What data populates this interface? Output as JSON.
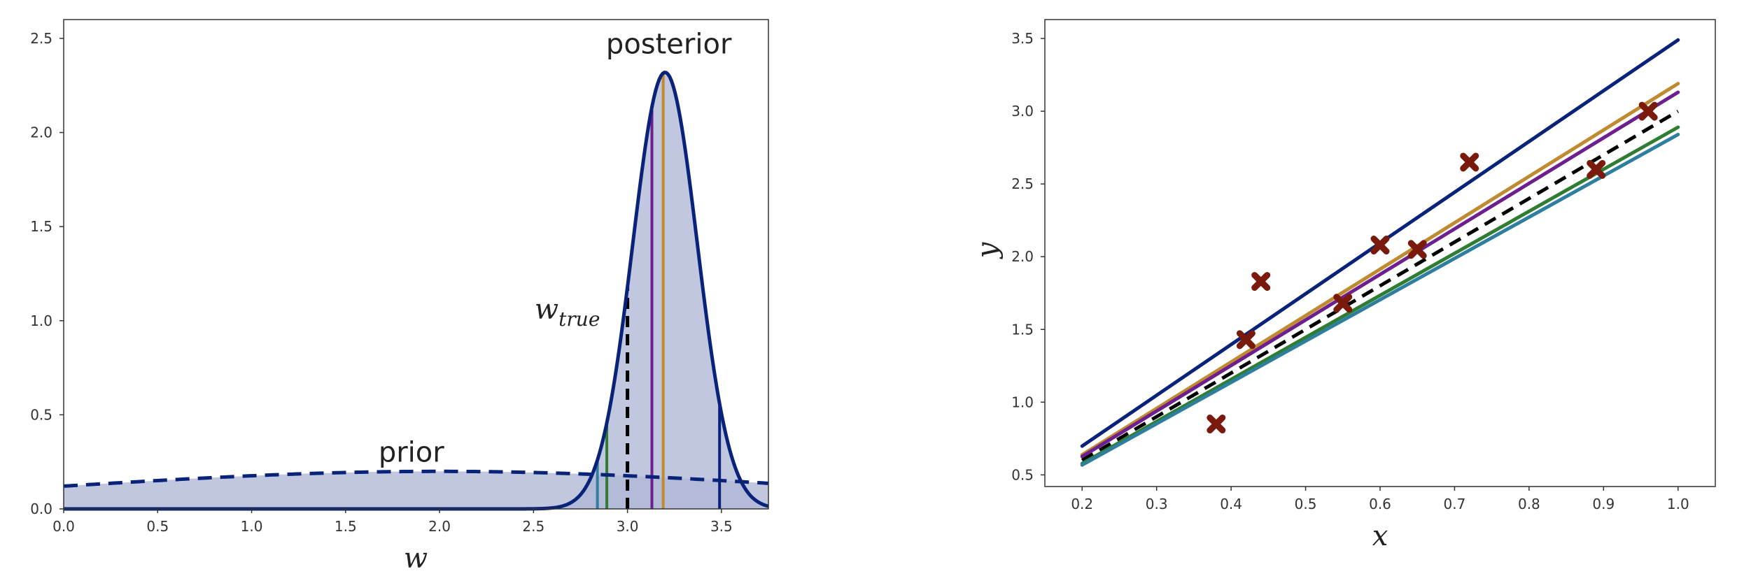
{
  "chart_data": [
    {
      "type": "area",
      "xlabel": "w",
      "ylabel": "",
      "xlim": [
        0.0,
        3.75
      ],
      "ylim": [
        0.0,
        2.6
      ],
      "xticks": [
        "0.0",
        "0.5",
        "1.0",
        "1.5",
        "2.0",
        "2.5",
        "3.0",
        "3.5"
      ],
      "yticks": [
        "0.0",
        "0.5",
        "1.0",
        "1.5",
        "2.0",
        "2.5"
      ],
      "grid": false,
      "colors": {
        "fill": "#b0b7d6",
        "curve": "#0a237a"
      },
      "prior": {
        "label": "prior",
        "distribution": "normal",
        "mean": 2.0,
        "std": 2.0,
        "style": "dashed"
      },
      "posterior": {
        "label": "posterior",
        "distribution": "normal",
        "mean": 3.2,
        "std": 0.172,
        "style": "solid"
      },
      "true_value": {
        "label": "w",
        "subscript": "true",
        "value": 3.0,
        "style": "dashed",
        "color": "#000000"
      },
      "sample_lines": [
        {
          "w": 2.84,
          "color": "#2e7ea0"
        },
        {
          "w": 2.89,
          "color": "#2f7d32"
        },
        {
          "w": 3.13,
          "color": "#6e1f8f"
        },
        {
          "w": 3.19,
          "color": "#c08a30"
        },
        {
          "w": 3.49,
          "color": "#0a237a"
        }
      ],
      "annotations": [
        {
          "text": "posterior",
          "x": 3.22,
          "y": 2.42
        },
        {
          "text": "prior",
          "x": 1.85,
          "y": 0.25
        },
        {
          "text": "w_true",
          "x": 2.68,
          "y": 1.01
        }
      ]
    },
    {
      "type": "scatter",
      "xlabel": "x",
      "ylabel": "y",
      "xlim": [
        0.15,
        1.05
      ],
      "ylim": [
        0.42,
        3.63
      ],
      "xticks": [
        "0.2",
        "0.3",
        "0.4",
        "0.5",
        "0.6",
        "0.7",
        "0.8",
        "0.9",
        "1.0"
      ],
      "yticks": [
        "0.5",
        "1.0",
        "1.5",
        "2.0",
        "2.5",
        "3.0",
        "3.5"
      ],
      "grid": false,
      "points": {
        "marker": "x",
        "color": "#7a1a0c",
        "x": [
          0.38,
          0.42,
          0.44,
          0.55,
          0.6,
          0.65,
          0.72,
          0.89,
          0.96
        ],
        "y": [
          0.85,
          1.43,
          1.83,
          1.68,
          2.08,
          2.05,
          2.65,
          2.6,
          3.0
        ]
      },
      "lines": [
        {
          "slope": 3.49,
          "color": "#0a237a",
          "style": "solid"
        },
        {
          "slope": 3.19,
          "color": "#c08a30",
          "style": "solid"
        },
        {
          "slope": 3.13,
          "color": "#6e1f8f",
          "style": "solid"
        },
        {
          "slope": 3.0,
          "color": "#000000",
          "style": "dashed"
        },
        {
          "slope": 2.89,
          "color": "#2f7d32",
          "style": "solid"
        },
        {
          "slope": 2.84,
          "color": "#2e7ea0",
          "style": "solid"
        }
      ],
      "line_x_range": [
        0.2,
        1.0
      ]
    }
  ]
}
